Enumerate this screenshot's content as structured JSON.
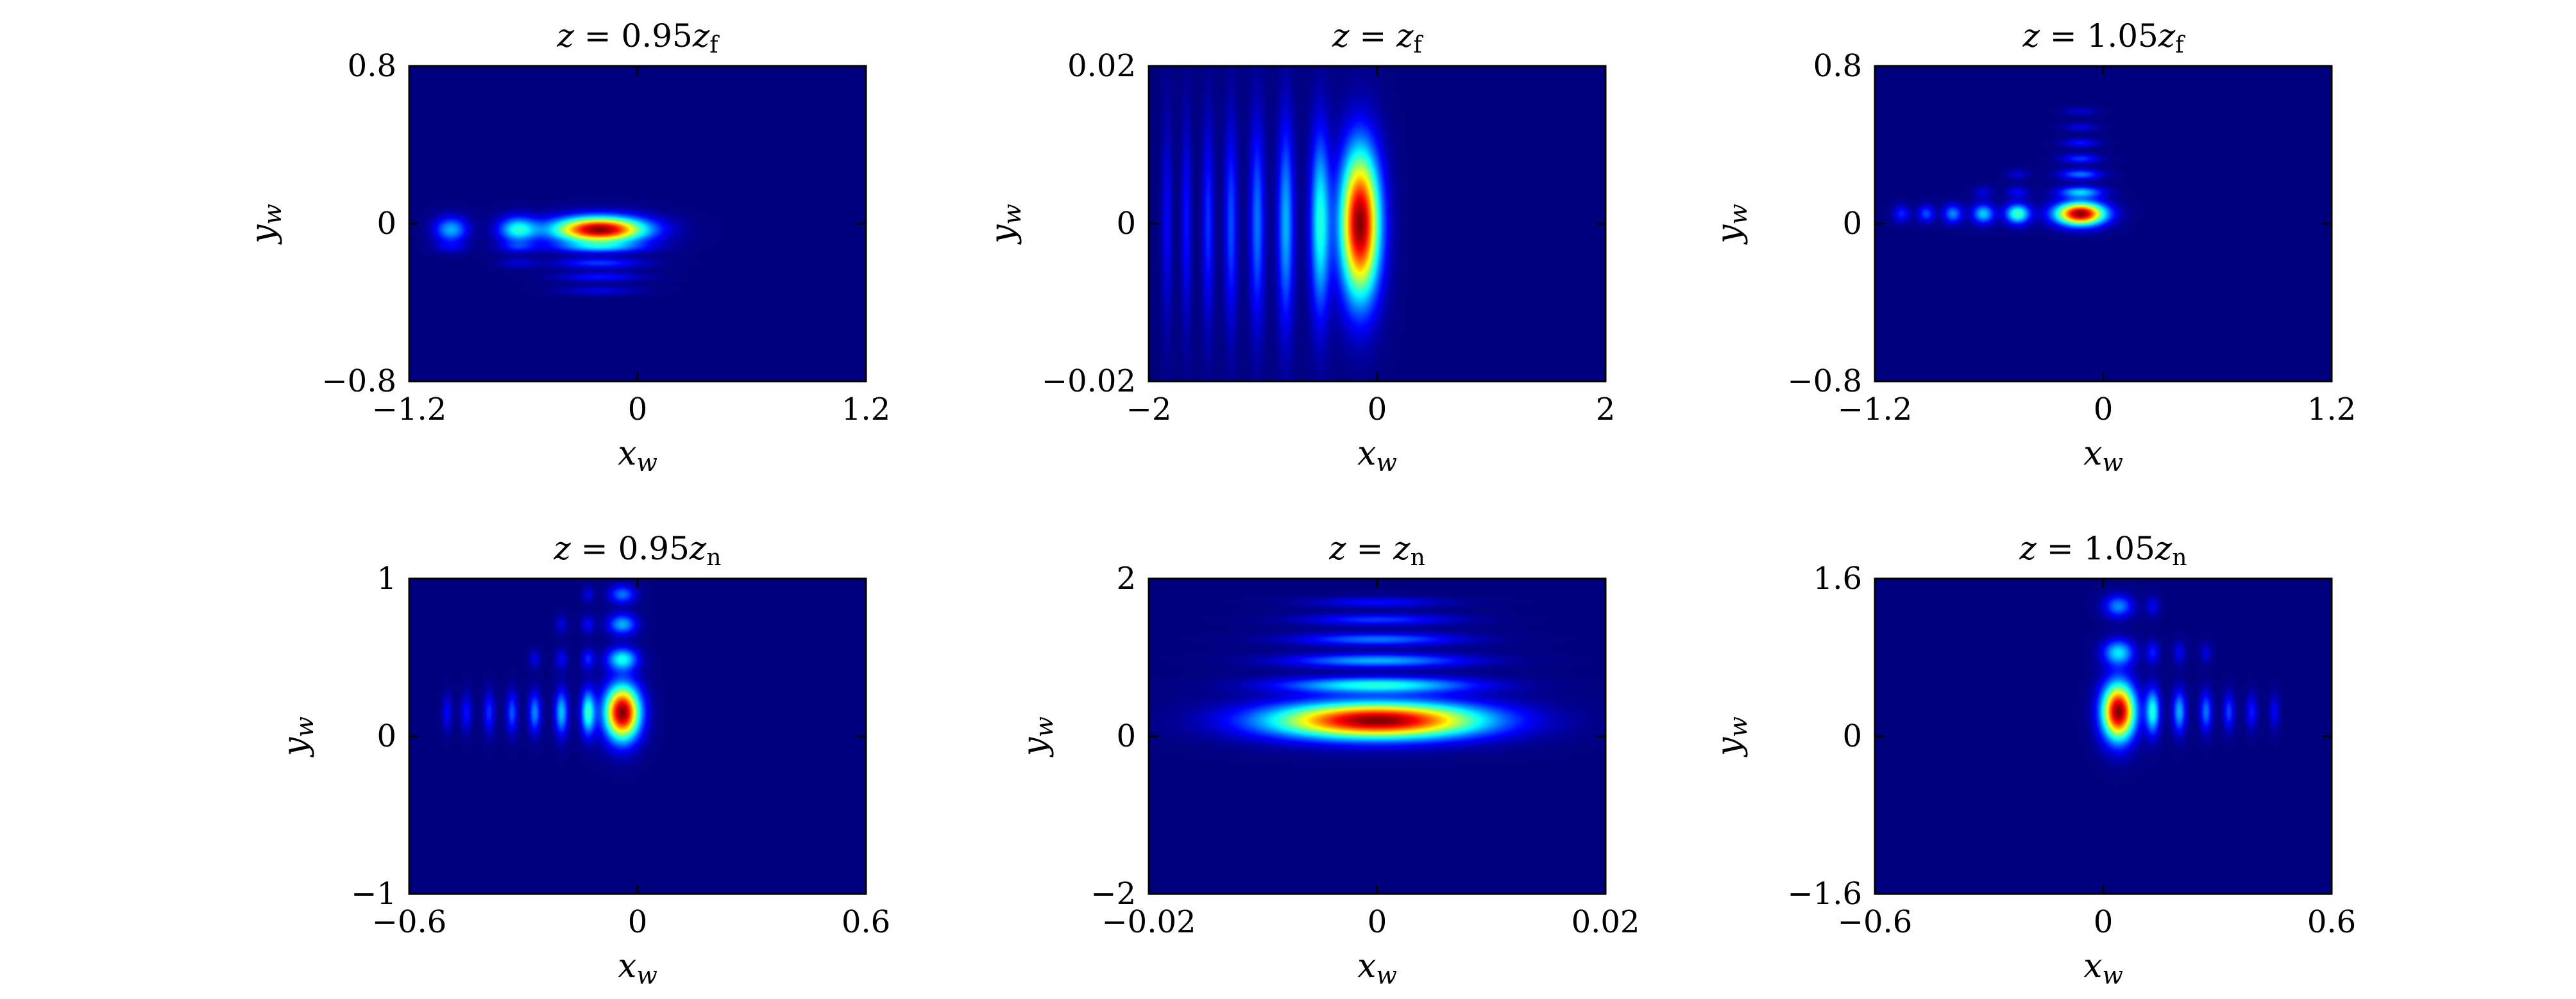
{
  "colormap": [
    "#00007f",
    "#0000ff",
    "#007fff",
    "#00ffff",
    "#7fff7f",
    "#ffff00",
    "#ff7f00",
    "#ff0000",
    "#7f0000"
  ],
  "chart_data": [
    {
      "type": "heatmap",
      "title": "z = 0.95z_f",
      "xlabel": "x_w",
      "ylabel": "y_w",
      "xlim": [
        -1.2,
        1.2
      ],
      "ylim": [
        -0.8,
        0.8
      ],
      "xticks": [
        "−1.2",
        "0",
        "1.2"
      ],
      "yticks": [
        "−0.8",
        "0",
        "0.8"
      ],
      "peak": {
        "x": -0.2,
        "y": -0.03
      },
      "features": [
        {
          "x": -0.2,
          "y": -0.03,
          "sx": 0.17,
          "sy": 0.045,
          "amp": 1.0
        },
        {
          "x": -0.63,
          "y": -0.03,
          "sx": 0.07,
          "sy": 0.045,
          "amp": 0.38
        },
        {
          "x": -0.98,
          "y": -0.03,
          "sx": 0.06,
          "sy": 0.045,
          "amp": 0.3
        },
        {
          "x": -0.2,
          "y": -0.12,
          "sx": 0.17,
          "sy": 0.02,
          "amp": 0.24
        },
        {
          "x": -0.2,
          "y": -0.2,
          "sx": 0.16,
          "sy": 0.018,
          "amp": 0.18
        },
        {
          "x": -0.2,
          "y": -0.27,
          "sx": 0.15,
          "sy": 0.016,
          "amp": 0.14
        },
        {
          "x": -0.2,
          "y": -0.34,
          "sx": 0.14,
          "sy": 0.015,
          "amp": 0.1
        },
        {
          "x": -0.63,
          "y": -0.12,
          "sx": 0.07,
          "sy": 0.02,
          "amp": 0.12
        },
        {
          "x": -0.63,
          "y": -0.2,
          "sx": 0.07,
          "sy": 0.018,
          "amp": 0.08
        },
        {
          "x": -0.98,
          "y": -0.12,
          "sx": 0.06,
          "sy": 0.02,
          "amp": 0.08
        }
      ]
    },
    {
      "type": "heatmap",
      "title": "z = z_f",
      "xlabel": "x_w",
      "ylabel": "y_w",
      "xlim": [
        -2,
        2
      ],
      "ylim": [
        -0.02,
        0.02
      ],
      "xticks": [
        "−2",
        "0",
        "2"
      ],
      "yticks": [
        "−0.02",
        "0",
        "0.02"
      ],
      "peak": {
        "x": -0.15,
        "y": 0.0
      },
      "features": [
        {
          "x": -0.15,
          "y": 0.0,
          "sx": 0.12,
          "sy": 0.0065,
          "amp": 1.0
        },
        {
          "x": -0.5,
          "y": 0.0,
          "sx": 0.06,
          "sy": 0.008,
          "amp": 0.4
        },
        {
          "x": -0.8,
          "y": 0.0,
          "sx": 0.05,
          "sy": 0.009,
          "amp": 0.3
        },
        {
          "x": -1.05,
          "y": 0.0,
          "sx": 0.045,
          "sy": 0.009,
          "amp": 0.24
        },
        {
          "x": -1.28,
          "y": 0.0,
          "sx": 0.04,
          "sy": 0.009,
          "amp": 0.2
        },
        {
          "x": -1.48,
          "y": 0.0,
          "sx": 0.035,
          "sy": 0.009,
          "amp": 0.17
        },
        {
          "x": -1.67,
          "y": 0.0,
          "sx": 0.03,
          "sy": 0.009,
          "amp": 0.14
        },
        {
          "x": -1.84,
          "y": 0.0,
          "sx": 0.03,
          "sy": 0.009,
          "amp": 0.12
        }
      ]
    },
    {
      "type": "heatmap",
      "title": "z = 1.05z_f",
      "xlabel": "x_w",
      "ylabel": "y_w",
      "xlim": [
        -1.2,
        1.2
      ],
      "ylim": [
        -0.8,
        0.8
      ],
      "xticks": [
        "−1.2",
        "0",
        "1.2"
      ],
      "yticks": [
        "−0.8",
        "0",
        "0.8"
      ],
      "peak": {
        "x": -0.12,
        "y": 0.05
      },
      "features": [
        {
          "x": -0.12,
          "y": 0.05,
          "sx": 0.09,
          "sy": 0.04,
          "amp": 1.0
        },
        {
          "x": -0.12,
          "y": 0.16,
          "sx": 0.08,
          "sy": 0.02,
          "amp": 0.32
        },
        {
          "x": -0.12,
          "y": 0.25,
          "sx": 0.075,
          "sy": 0.018,
          "amp": 0.24
        },
        {
          "x": -0.12,
          "y": 0.33,
          "sx": 0.07,
          "sy": 0.016,
          "amp": 0.18
        },
        {
          "x": -0.12,
          "y": 0.41,
          "sx": 0.065,
          "sy": 0.015,
          "amp": 0.14
        },
        {
          "x": -0.12,
          "y": 0.49,
          "sx": 0.06,
          "sy": 0.014,
          "amp": 0.1
        },
        {
          "x": -0.12,
          "y": 0.57,
          "sx": 0.06,
          "sy": 0.014,
          "amp": 0.08
        },
        {
          "x": -0.45,
          "y": 0.05,
          "sx": 0.045,
          "sy": 0.035,
          "amp": 0.45
        },
        {
          "x": -0.63,
          "y": 0.05,
          "sx": 0.04,
          "sy": 0.035,
          "amp": 0.33
        },
        {
          "x": -0.79,
          "y": 0.05,
          "sx": 0.035,
          "sy": 0.033,
          "amp": 0.26
        },
        {
          "x": -0.93,
          "y": 0.05,
          "sx": 0.03,
          "sy": 0.03,
          "amp": 0.2
        },
        {
          "x": -1.06,
          "y": 0.05,
          "sx": 0.03,
          "sy": 0.03,
          "amp": 0.16
        },
        {
          "x": -0.45,
          "y": 0.16,
          "sx": 0.04,
          "sy": 0.02,
          "amp": 0.12
        },
        {
          "x": -0.63,
          "y": 0.16,
          "sx": 0.035,
          "sy": 0.02,
          "amp": 0.09
        },
        {
          "x": -0.45,
          "y": 0.25,
          "sx": 0.04,
          "sy": 0.018,
          "amp": 0.08
        }
      ]
    },
    {
      "type": "heatmap",
      "title": "z = 0.95z_n",
      "xlabel": "x_w",
      "ylabel": "y_w",
      "xlim": [
        -0.6,
        0.6
      ],
      "ylim": [
        -1,
        1
      ],
      "xticks": [
        "−0.6",
        "0",
        "0.6"
      ],
      "yticks": [
        "−1",
        "0",
        "1"
      ],
      "peak": {
        "x": -0.04,
        "y": 0.15
      },
      "features": [
        {
          "x": -0.04,
          "y": 0.15,
          "sx": 0.032,
          "sy": 0.12,
          "amp": 1.0
        },
        {
          "x": -0.04,
          "y": 0.49,
          "sx": 0.028,
          "sy": 0.05,
          "amp": 0.38
        },
        {
          "x": -0.04,
          "y": 0.71,
          "sx": 0.026,
          "sy": 0.045,
          "amp": 0.3
        },
        {
          "x": -0.04,
          "y": 0.9,
          "sx": 0.024,
          "sy": 0.04,
          "amp": 0.24
        },
        {
          "x": -0.13,
          "y": 0.15,
          "sx": 0.013,
          "sy": 0.1,
          "amp": 0.42
        },
        {
          "x": -0.2,
          "y": 0.15,
          "sx": 0.012,
          "sy": 0.1,
          "amp": 0.32
        },
        {
          "x": -0.27,
          "y": 0.15,
          "sx": 0.011,
          "sy": 0.09,
          "amp": 0.26
        },
        {
          "x": -0.33,
          "y": 0.15,
          "sx": 0.01,
          "sy": 0.09,
          "amp": 0.21
        },
        {
          "x": -0.39,
          "y": 0.15,
          "sx": 0.01,
          "sy": 0.09,
          "amp": 0.17
        },
        {
          "x": -0.45,
          "y": 0.15,
          "sx": 0.01,
          "sy": 0.08,
          "amp": 0.14
        },
        {
          "x": -0.5,
          "y": 0.15,
          "sx": 0.009,
          "sy": 0.08,
          "amp": 0.12
        },
        {
          "x": -0.13,
          "y": 0.49,
          "sx": 0.012,
          "sy": 0.045,
          "amp": 0.16
        },
        {
          "x": -0.2,
          "y": 0.49,
          "sx": 0.011,
          "sy": 0.045,
          "amp": 0.12
        },
        {
          "x": -0.27,
          "y": 0.49,
          "sx": 0.01,
          "sy": 0.04,
          "amp": 0.1
        },
        {
          "x": -0.13,
          "y": 0.71,
          "sx": 0.012,
          "sy": 0.04,
          "amp": 0.12
        },
        {
          "x": -0.2,
          "y": 0.71,
          "sx": 0.011,
          "sy": 0.04,
          "amp": 0.09
        },
        {
          "x": -0.13,
          "y": 0.9,
          "sx": 0.011,
          "sy": 0.035,
          "amp": 0.09
        }
      ]
    },
    {
      "type": "heatmap",
      "title": "z = z_n",
      "xlabel": "x_w",
      "ylabel": "y_w",
      "xlim": [
        -0.02,
        0.02
      ],
      "ylim": [
        -2,
        2
      ],
      "xticks": [
        "−0.02",
        "0",
        "0.02"
      ],
      "yticks": [
        "−2",
        "0",
        "2"
      ],
      "peak": {
        "x": 0.0,
        "y": 0.2
      },
      "features": [
        {
          "x": 0.0,
          "y": 0.2,
          "sx": 0.0065,
          "sy": 0.16,
          "amp": 1.0
        },
        {
          "x": 0.0,
          "y": 0.65,
          "sx": 0.0058,
          "sy": 0.07,
          "amp": 0.4
        },
        {
          "x": 0.0,
          "y": 0.96,
          "sx": 0.0054,
          "sy": 0.06,
          "amp": 0.3
        },
        {
          "x": 0.0,
          "y": 1.23,
          "sx": 0.005,
          "sy": 0.055,
          "amp": 0.24
        },
        {
          "x": 0.0,
          "y": 1.48,
          "sx": 0.0046,
          "sy": 0.05,
          "amp": 0.18
        },
        {
          "x": 0.0,
          "y": 1.7,
          "sx": 0.0042,
          "sy": 0.045,
          "amp": 0.13
        }
      ]
    },
    {
      "type": "heatmap",
      "title": "z = 1.05z_n",
      "xlabel": "x_w",
      "ylabel": "y_w",
      "xlim": [
        -0.6,
        0.6
      ],
      "ylim": [
        -1.6,
        1.6
      ],
      "xticks": [
        "−0.6",
        "0",
        "0.6"
      ],
      "yticks": [
        "−1.6",
        "0",
        "1.6"
      ],
      "peak": {
        "x": 0.04,
        "y": 0.25
      },
      "features": [
        {
          "x": 0.04,
          "y": 0.25,
          "sx": 0.03,
          "sy": 0.2,
          "amp": 1.0
        },
        {
          "x": 0.04,
          "y": 0.85,
          "sx": 0.028,
          "sy": 0.09,
          "amp": 0.35
        },
        {
          "x": 0.04,
          "y": 1.32,
          "sx": 0.026,
          "sy": 0.08,
          "amp": 0.26
        },
        {
          "x": 0.13,
          "y": 0.25,
          "sx": 0.013,
          "sy": 0.16,
          "amp": 0.4
        },
        {
          "x": 0.2,
          "y": 0.25,
          "sx": 0.012,
          "sy": 0.15,
          "amp": 0.3
        },
        {
          "x": 0.27,
          "y": 0.25,
          "sx": 0.011,
          "sy": 0.14,
          "amp": 0.24
        },
        {
          "x": 0.33,
          "y": 0.25,
          "sx": 0.01,
          "sy": 0.13,
          "amp": 0.19
        },
        {
          "x": 0.39,
          "y": 0.25,
          "sx": 0.01,
          "sy": 0.12,
          "amp": 0.15
        },
        {
          "x": 0.45,
          "y": 0.25,
          "sx": 0.009,
          "sy": 0.12,
          "amp": 0.12
        },
        {
          "x": 0.13,
          "y": 0.85,
          "sx": 0.012,
          "sy": 0.08,
          "amp": 0.15
        },
        {
          "x": 0.2,
          "y": 0.85,
          "sx": 0.011,
          "sy": 0.08,
          "amp": 0.11
        },
        {
          "x": 0.27,
          "y": 0.85,
          "sx": 0.01,
          "sy": 0.07,
          "amp": 0.09
        },
        {
          "x": 0.13,
          "y": 1.32,
          "sx": 0.012,
          "sy": 0.07,
          "amp": 0.11
        }
      ]
    }
  ]
}
